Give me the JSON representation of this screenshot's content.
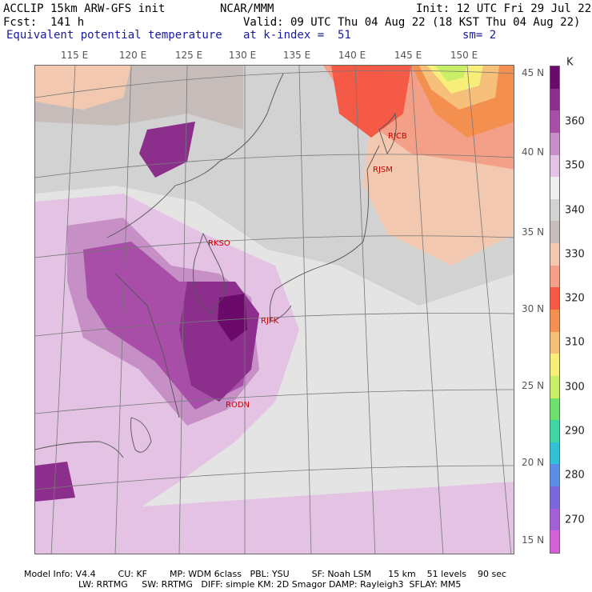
{
  "header": {
    "line1_left": "ACCLIP 15km ARW-GFS init",
    "line1_center": "NCAR/MMM",
    "line1_right": "Init: 12 UTC Fri 29 Jul 22",
    "line2_left": "Fcst:  141 h",
    "line2_right": "Valid: 09 UTC Thu 04 Aug 22 (18 KST Thu 04 Aug 22)",
    "line3_left": "Equivalent potential temperature",
    "line3_center": "at k-index =  51",
    "line3_right": "sm= 2"
  },
  "axes": {
    "lon_ticks": [
      "115 E",
      "120 E",
      "125 E",
      "130 E",
      "135 E",
      "140 E",
      "145 E",
      "150 E"
    ],
    "lat_ticks": [
      "45 N",
      "40 N",
      "35 N",
      "30 N",
      "25 N",
      "20 N",
      "15 N"
    ]
  },
  "colorbar": {
    "unit": "K",
    "labels": [
      "360",
      "350",
      "340",
      "330",
      "320",
      "310",
      "300",
      "290",
      "280",
      "270"
    ],
    "colors": [
      "#6b0a6b",
      "#8c2f8c",
      "#a84ea8",
      "#c690c6",
      "#e3c2e3",
      "#efefef",
      "#d2d2d2",
      "#c6bdbb",
      "#f2c9b0",
      "#f4a088",
      "#f45a46",
      "#f4904f",
      "#f7c07a",
      "#f7ef7a",
      "#c9ef66",
      "#6ee06e",
      "#3ed6a3",
      "#2fc1d6",
      "#5a8ee6",
      "#7a67dd",
      "#a35fd6",
      "#d45fd6"
    ]
  },
  "stations": [
    "RJCB",
    "RJSM",
    "RKSO",
    "RJFK",
    "RODN"
  ],
  "footer": {
    "line1": "Model Info: V4.4        CU: KF        MP: WDM 6class   PBL: YSU        SF: Noah LSM      15 km    51 levels    90 sec",
    "line2": "LW: RRTMG     SW: RRTMG   DIFF: simple KM: 2D Smagor DAMP: Rayleigh3  SFLAY: MM5"
  }
}
